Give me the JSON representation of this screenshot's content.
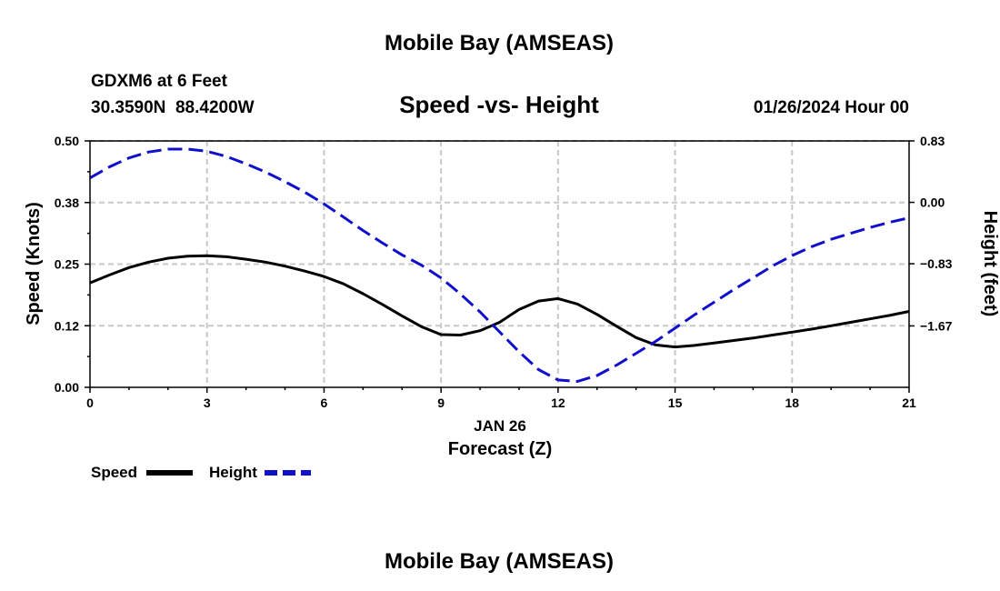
{
  "header": {
    "title": "Mobile Bay (AMSEAS)",
    "station_line": "GDXM6 at 6 Feet",
    "coords_line": "30.3590N  88.4200W",
    "datetime_line": "01/26/2024 Hour 00",
    "footer_title": "Mobile Bay (AMSEAS)"
  },
  "colors": {
    "speed": "#000000",
    "height": "#1010cc",
    "grid": "#c8c8c8"
  },
  "chart_data": {
    "type": "line",
    "title": "Speed -vs- Height",
    "xlabel": "Forecast (Z)",
    "date_label": "JAN 26",
    "ylabel_left": "Speed (Knots)",
    "ylabel_right": "Height (feet)",
    "xlim": [
      0,
      21
    ],
    "ylim_left": [
      0,
      0.5
    ],
    "ylim_right": [
      -2.5,
      0.83
    ],
    "x_ticks": [
      0,
      3,
      6,
      9,
      12,
      15,
      18,
      21
    ],
    "x_tick_labels": [
      "0",
      "3",
      "6",
      "9",
      "12",
      "15",
      "18",
      "21"
    ],
    "y_left_ticks": [
      0,
      0.125,
      0.25,
      0.375,
      0.5
    ],
    "y_left_tick_labels": [
      "0.00",
      "0.12",
      "0.25",
      "0.38",
      "0.50"
    ],
    "y_right_ticks": [
      -1.67,
      -0.83,
      0,
      0.83
    ],
    "y_right_tick_labels": [
      "−1.67",
      "−0.83",
      "0.00",
      "0.83"
    ],
    "grid": true,
    "series": [
      {
        "name": "Speed",
        "axis": "left",
        "style": "solid",
        "x": [
          0,
          0.5,
          1,
          1.5,
          2,
          2.5,
          3,
          3.5,
          4,
          4.5,
          5,
          5.5,
          6,
          6.5,
          7,
          7.5,
          8,
          8.5,
          9,
          9.5,
          10,
          10.5,
          11,
          11.5,
          12,
          12.5,
          13,
          13.5,
          14,
          14.5,
          15,
          15.5,
          16,
          16.5,
          17,
          17.5,
          18,
          18.5,
          19,
          19.5,
          20,
          20.5,
          21
        ],
        "values": [
          0.212,
          0.228,
          0.243,
          0.254,
          0.262,
          0.266,
          0.267,
          0.265,
          0.26,
          0.254,
          0.246,
          0.236,
          0.225,
          0.21,
          0.19,
          0.168,
          0.145,
          0.123,
          0.107,
          0.106,
          0.115,
          0.132,
          0.158,
          0.175,
          0.18,
          0.169,
          0.148,
          0.124,
          0.101,
          0.086,
          0.082,
          0.085,
          0.09,
          0.095,
          0.1,
          0.106,
          0.112,
          0.118,
          0.125,
          0.132,
          0.139,
          0.146,
          0.154
        ]
      },
      {
        "name": "Height",
        "axis": "right",
        "style": "dashed",
        "x": [
          0,
          0.5,
          1,
          1.5,
          2,
          2.5,
          3,
          3.5,
          4,
          4.5,
          5,
          5.5,
          6,
          6.5,
          7,
          7.5,
          8,
          8.5,
          9,
          9.5,
          10,
          10.5,
          11,
          11.5,
          12,
          12.5,
          13,
          13.5,
          14,
          14.5,
          15,
          15.5,
          16,
          16.5,
          17,
          17.5,
          18,
          18.5,
          19,
          19.5,
          20,
          20.5,
          21
        ],
        "values": [
          0.33,
          0.48,
          0.6,
          0.68,
          0.72,
          0.72,
          0.69,
          0.62,
          0.52,
          0.41,
          0.28,
          0.14,
          -0.02,
          -0.2,
          -0.38,
          -0.55,
          -0.71,
          -0.85,
          -1.02,
          -1.24,
          -1.48,
          -1.75,
          -2.02,
          -2.26,
          -2.4,
          -2.42,
          -2.34,
          -2.2,
          -2.04,
          -1.88,
          -1.7,
          -1.52,
          -1.35,
          -1.18,
          -1.02,
          -0.86,
          -0.72,
          -0.6,
          -0.5,
          -0.42,
          -0.34,
          -0.27,
          -0.21
        ]
      }
    ],
    "legend": {
      "placement": "bottom-left",
      "entries": [
        "Speed",
        "Height"
      ]
    }
  }
}
